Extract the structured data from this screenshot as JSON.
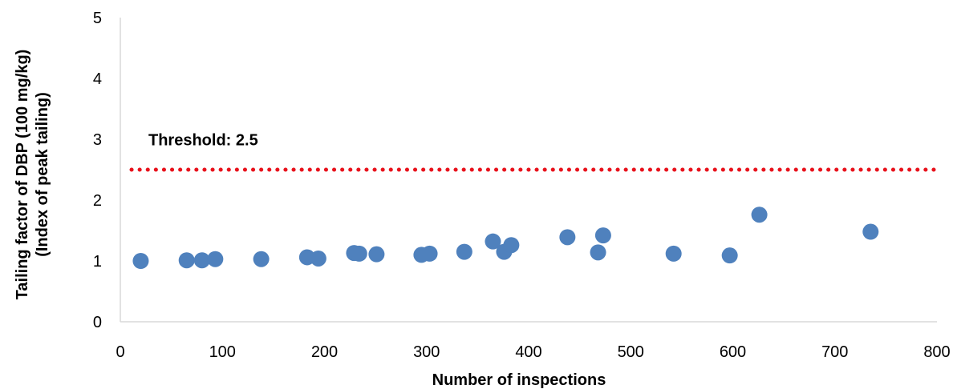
{
  "chart_data": {
    "type": "scatter",
    "title": "",
    "xlabel": "Number of inspections",
    "ylabel_lines": [
      "Tailing factor of DBP (100 mg/kg)",
      "(Index of peak tailing)"
    ],
    "xlim": [
      0,
      800
    ],
    "ylim": [
      0,
      5
    ],
    "xticks": [
      "0",
      "100",
      "200",
      "300",
      "400",
      "500",
      "600",
      "700",
      "800"
    ],
    "yticks": [
      "0",
      "1",
      "2",
      "3",
      "4",
      "5"
    ],
    "grid": false,
    "legend": "none",
    "series": [
      {
        "points": [
          {
            "x": 20,
            "y": 1.0
          },
          {
            "x": 65,
            "y": 1.01
          },
          {
            "x": 80,
            "y": 1.01
          },
          {
            "x": 93,
            "y": 1.03
          },
          {
            "x": 138,
            "y": 1.03
          },
          {
            "x": 183,
            "y": 1.06
          },
          {
            "x": 194,
            "y": 1.04
          },
          {
            "x": 229,
            "y": 1.13
          },
          {
            "x": 234,
            "y": 1.12
          },
          {
            "x": 251,
            "y": 1.11
          },
          {
            "x": 295,
            "y": 1.1
          },
          {
            "x": 303,
            "y": 1.12
          },
          {
            "x": 337,
            "y": 1.15
          },
          {
            "x": 365,
            "y": 1.32
          },
          {
            "x": 376,
            "y": 1.15
          },
          {
            "x": 383,
            "y": 1.26
          },
          {
            "x": 438,
            "y": 1.39
          },
          {
            "x": 468,
            "y": 1.14
          },
          {
            "x": 473,
            "y": 1.42
          },
          {
            "x": 542,
            "y": 1.12
          },
          {
            "x": 597,
            "y": 1.09
          },
          {
            "x": 626,
            "y": 1.76
          },
          {
            "x": 735,
            "y": 1.48
          }
        ]
      }
    ],
    "threshold": {
      "value": 2.5,
      "label": "Threshold: 2.5"
    },
    "colors": {
      "points": "#4f81bd",
      "threshold": "#e8111b",
      "axis": "#d9d9d9",
      "text": "#000000"
    }
  }
}
